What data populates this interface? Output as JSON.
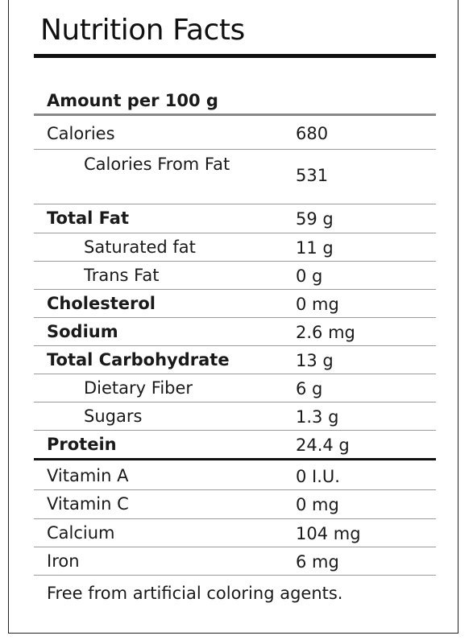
{
  "title": "Nutrition Facts",
  "amount_label": "Amount per 100  g",
  "rows": [
    {
      "name": "Calories",
      "value": "680"
    },
    {
      "name": "Calories From Fat",
      "value": "531"
    },
    {
      "name": "Total Fat",
      "value": "59 g"
    },
    {
      "name": "Saturated fat",
      "value": "11 g"
    },
    {
      "name": "Trans Fat",
      "value": "0 g"
    },
    {
      "name": "Cholesterol",
      "value": "0 mg"
    },
    {
      "name": "Sodium",
      "value": "2.6 mg"
    },
    {
      "name": "Total Carbohydrate",
      "value": "13 g"
    },
    {
      "name": "Dietary Fiber",
      "value": "6 g"
    },
    {
      "name": "Sugars",
      "value": "1.3 g"
    },
    {
      "name": "Protein",
      "value": "24.4 g"
    },
    {
      "name": "Vitamin A",
      "value": "0 I.U."
    },
    {
      "name": "Vitamin C",
      "value": "0 mg"
    },
    {
      "name": "Calcium",
      "value": "104 mg"
    },
    {
      "name": "Iron",
      "value": "6 mg"
    }
  ],
  "footnote": "Free from artificial  coloring agents."
}
